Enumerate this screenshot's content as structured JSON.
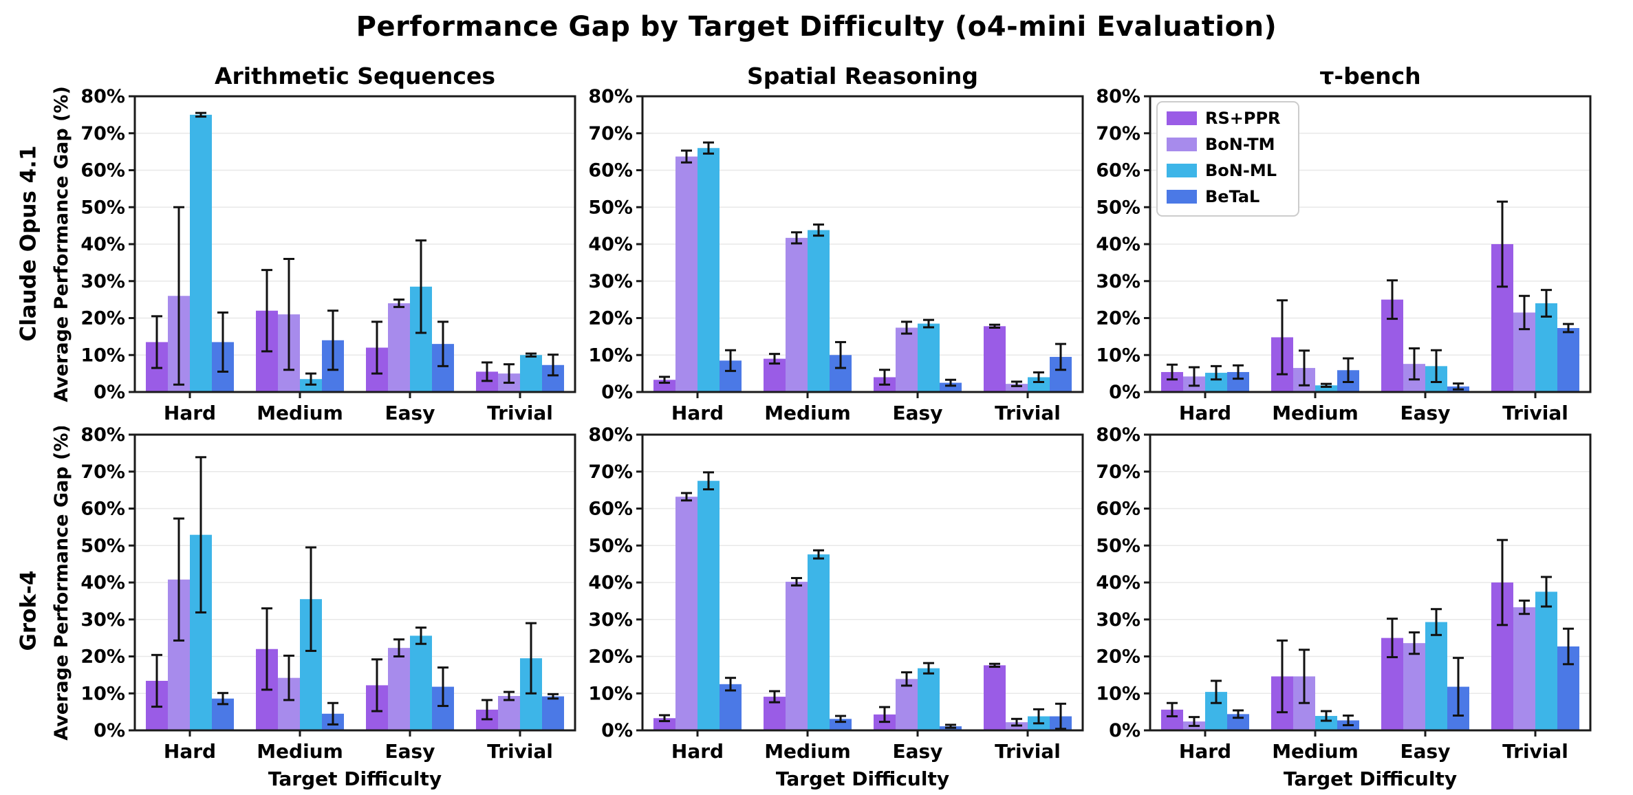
{
  "title": "Performance Gap by Target Difficulty (o4-mini Evaluation)",
  "axes": {
    "y_label": "Average Performance Gap (%)",
    "x_label": "Target Difficulty",
    "y_ticks": [
      "0%",
      "10%",
      "20%",
      "30%",
      "40%",
      "50%",
      "60%",
      "70%",
      "80%"
    ],
    "y_max": 80,
    "categories": [
      "Hard",
      "Medium",
      "Easy",
      "Trivial"
    ],
    "grid": "horizontal"
  },
  "legend": {
    "position": "upper-left of top tau-bench subplot",
    "entries": [
      {
        "label": "RS+PPR",
        "color": "#9A5CE6"
      },
      {
        "label": "BoN-TM",
        "color": "#A78BEC"
      },
      {
        "label": "BoN-ML",
        "color": "#3DB5E8"
      },
      {
        "label": "BeTaL",
        "color": "#4B79E6"
      }
    ]
  },
  "rows": [
    {
      "label": "Claude Opus 4.1"
    },
    {
      "label": "Grok-4"
    }
  ],
  "cols": [
    {
      "label": "Arithmetic Sequences"
    },
    {
      "label": "Spatial Reasoning"
    },
    {
      "label": "τ-bench"
    }
  ],
  "chart_data": [
    {
      "type": "bar",
      "model": "Claude Opus 4.1",
      "title": "Arithmetic Sequences",
      "categories": [
        "Hard",
        "Medium",
        "Easy",
        "Trivial"
      ],
      "ylim": [
        0,
        80
      ],
      "series": [
        {
          "name": "RS+PPR",
          "values": [
            13.5,
            22,
            12,
            5.5
          ],
          "errors": [
            7,
            11,
            7,
            2.5
          ]
        },
        {
          "name": "BoN-TM",
          "values": [
            26,
            21,
            24,
            5
          ],
          "errors": [
            24,
            15,
            1,
            2.5
          ]
        },
        {
          "name": "BoN-ML",
          "values": [
            75,
            3.5,
            28.5,
            10
          ],
          "errors": [
            0.5,
            1.5,
            12.5,
            0.4
          ]
        },
        {
          "name": "BeTaL",
          "values": [
            13.5,
            14,
            13,
            7.3
          ],
          "errors": [
            8,
            8,
            6,
            2.8
          ]
        }
      ]
    },
    {
      "type": "bar",
      "model": "Claude Opus 4.1",
      "title": "Spatial Reasoning",
      "categories": [
        "Hard",
        "Medium",
        "Easy",
        "Trivial"
      ],
      "ylim": [
        0,
        80
      ],
      "series": [
        {
          "name": "RS+PPR",
          "values": [
            3.3,
            9,
            4,
            17.8
          ],
          "errors": [
            0.8,
            1.3,
            2,
            0.4
          ]
        },
        {
          "name": "BoN-TM",
          "values": [
            63.7,
            41.7,
            17.4,
            2.2
          ],
          "errors": [
            1.6,
            1.5,
            1.6,
            0.6
          ]
        },
        {
          "name": "BoN-ML",
          "values": [
            66,
            43.8,
            18.5,
            4
          ],
          "errors": [
            1.5,
            1.5,
            1,
            1.3
          ]
        },
        {
          "name": "BeTaL",
          "values": [
            8.5,
            10,
            2.5,
            9.5
          ],
          "errors": [
            2.8,
            3.5,
            0.8,
            3.5
          ]
        }
      ]
    },
    {
      "type": "bar",
      "model": "Claude Opus 4.1",
      "title": "τ-bench",
      "categories": [
        "Hard",
        "Medium",
        "Easy",
        "Trivial"
      ],
      "ylim": [
        0,
        80
      ],
      "series": [
        {
          "name": "RS+PPR",
          "values": [
            5.4,
            14.8,
            25,
            40
          ],
          "errors": [
            2,
            10,
            5.2,
            11.5
          ]
        },
        {
          "name": "BoN-TM",
          "values": [
            4.2,
            6.5,
            7.6,
            21.5
          ],
          "errors": [
            2.5,
            4.7,
            4.2,
            4.5
          ]
        },
        {
          "name": "BoN-ML",
          "values": [
            5.2,
            1.8,
            7,
            24
          ],
          "errors": [
            1.8,
            0.4,
            4.3,
            3.6
          ]
        },
        {
          "name": "BeTaL",
          "values": [
            5.4,
            5.9,
            1.5,
            17.3
          ],
          "errors": [
            1.8,
            3.2,
            0.8,
            1.1
          ]
        }
      ]
    },
    {
      "type": "bar",
      "model": "Grok-4",
      "title": "Arithmetic Sequences",
      "categories": [
        "Hard",
        "Medium",
        "Easy",
        "Trivial"
      ],
      "ylim": [
        0,
        80
      ],
      "series": [
        {
          "name": "RS+PPR",
          "values": [
            13.4,
            22,
            12.2,
            5.6
          ],
          "errors": [
            7,
            11,
            7,
            2.6
          ]
        },
        {
          "name": "BoN-TM",
          "values": [
            40.8,
            14.2,
            22.3,
            9.3
          ],
          "errors": [
            16.5,
            6,
            2.3,
            1.1
          ]
        },
        {
          "name": "BoN-ML",
          "values": [
            52.9,
            35.5,
            25.6,
            19.5
          ],
          "errors": [
            21,
            14,
            2.2,
            9.5
          ]
        },
        {
          "name": "BeTaL",
          "values": [
            8.6,
            4.5,
            11.8,
            9.2
          ],
          "errors": [
            1.5,
            2.9,
            5.2,
            0.6
          ]
        }
      ]
    },
    {
      "type": "bar",
      "model": "Grok-4",
      "title": "Spatial Reasoning",
      "categories": [
        "Hard",
        "Medium",
        "Easy",
        "Trivial"
      ],
      "ylim": [
        0,
        80
      ],
      "series": [
        {
          "name": "RS+PPR",
          "values": [
            3.3,
            9.1,
            4.3,
            17.6
          ],
          "errors": [
            0.8,
            1.5,
            2,
            0.4
          ]
        },
        {
          "name": "BoN-TM",
          "values": [
            63.2,
            40.2,
            13.9,
            2.2
          ],
          "errors": [
            1,
            1,
            1.8,
            0.9
          ]
        },
        {
          "name": "BoN-ML",
          "values": [
            67.5,
            47.6,
            16.8,
            3.8
          ],
          "errors": [
            2.3,
            1.1,
            1.4,
            1.9
          ]
        },
        {
          "name": "BeTaL",
          "values": [
            12.5,
            3.1,
            1.1,
            3.8
          ],
          "errors": [
            1.7,
            0.8,
            0.4,
            3.4
          ]
        }
      ]
    },
    {
      "type": "bar",
      "model": "Grok-4",
      "title": "τ-bench",
      "categories": [
        "Hard",
        "Medium",
        "Easy",
        "Trivial"
      ],
      "ylim": [
        0,
        80
      ],
      "series": [
        {
          "name": "RS+PPR",
          "values": [
            5.6,
            14.6,
            25,
            40
          ],
          "errors": [
            1.8,
            9.7,
            5.2,
            11.5
          ]
        },
        {
          "name": "BoN-TM",
          "values": [
            2.4,
            14.6,
            23.6,
            33.3
          ],
          "errors": [
            1.2,
            7.2,
            2.9,
            1.8
          ]
        },
        {
          "name": "BoN-ML",
          "values": [
            10.4,
            3.9,
            29.3,
            37.5
          ],
          "errors": [
            3,
            1.3,
            3.5,
            4
          ]
        },
        {
          "name": "BeTaL",
          "values": [
            4.4,
            2.7,
            11.8,
            22.7
          ],
          "errors": [
            1,
            1.3,
            7.8,
            4.8
          ]
        }
      ]
    }
  ],
  "style": {
    "spine_color": "#1a1a1a",
    "grid_color": "#e8e8e8",
    "errorbar_color": "#111111",
    "background": "#ffffff"
  }
}
